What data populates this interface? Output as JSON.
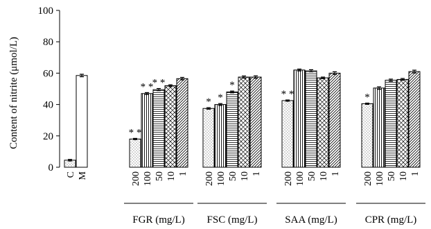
{
  "chart_data": {
    "type": "bar",
    "ylabel": "Content of nitrite (μmol/L)",
    "ylim": [
      0,
      100
    ],
    "yticks": [
      0,
      20,
      40,
      60,
      80,
      100
    ],
    "patterns": [
      "dots",
      "vertical-lines",
      "horizontal-lines",
      "crosshatch",
      "diagonal-lines"
    ],
    "groups": [
      {
        "name": "",
        "categories": [
          "C",
          "M"
        ],
        "values": [
          4.5,
          58.5
        ],
        "errors": [
          0.5,
          0.8
        ],
        "patterns": [
          "dots",
          "blank"
        ],
        "significance": [
          "",
          ""
        ]
      },
      {
        "name": "FGR (mg/L)",
        "categories": [
          "200",
          "100",
          "50",
          "10",
          "1"
        ],
        "values": [
          18,
          47,
          49.5,
          52,
          56.5
        ],
        "errors": [
          0.4,
          0.6,
          0.7,
          0.6,
          0.8
        ],
        "significance": [
          "* *",
          "* *",
          "* *",
          "",
          ""
        ]
      },
      {
        "name": "FSC (mg/L)",
        "categories": [
          "200",
          "100",
          "50",
          "10",
          "1"
        ],
        "values": [
          37.5,
          40,
          48,
          57.5,
          57.5
        ],
        "errors": [
          0.5,
          0.6,
          0.6,
          0.7,
          0.8
        ],
        "significance": [
          "*",
          "*",
          "*",
          "",
          ""
        ]
      },
      {
        "name": "SAA (mg/L)",
        "categories": [
          "200",
          "100",
          "50",
          "10",
          "1"
        ],
        "values": [
          42.5,
          62,
          61.5,
          57,
          60
        ],
        "errors": [
          0.4,
          0.6,
          0.7,
          0.5,
          0.9
        ],
        "significance": [
          "* *",
          "",
          "",
          "",
          ""
        ]
      },
      {
        "name": "CPR (mg/L)",
        "categories": [
          "200",
          "100",
          "50",
          "10",
          "1"
        ],
        "values": [
          40.5,
          50.5,
          55.5,
          56,
          61
        ],
        "errors": [
          0.4,
          0.8,
          0.7,
          0.6,
          0.9
        ],
        "significance": [
          "*",
          "",
          "",
          "",
          ""
        ]
      }
    ]
  }
}
